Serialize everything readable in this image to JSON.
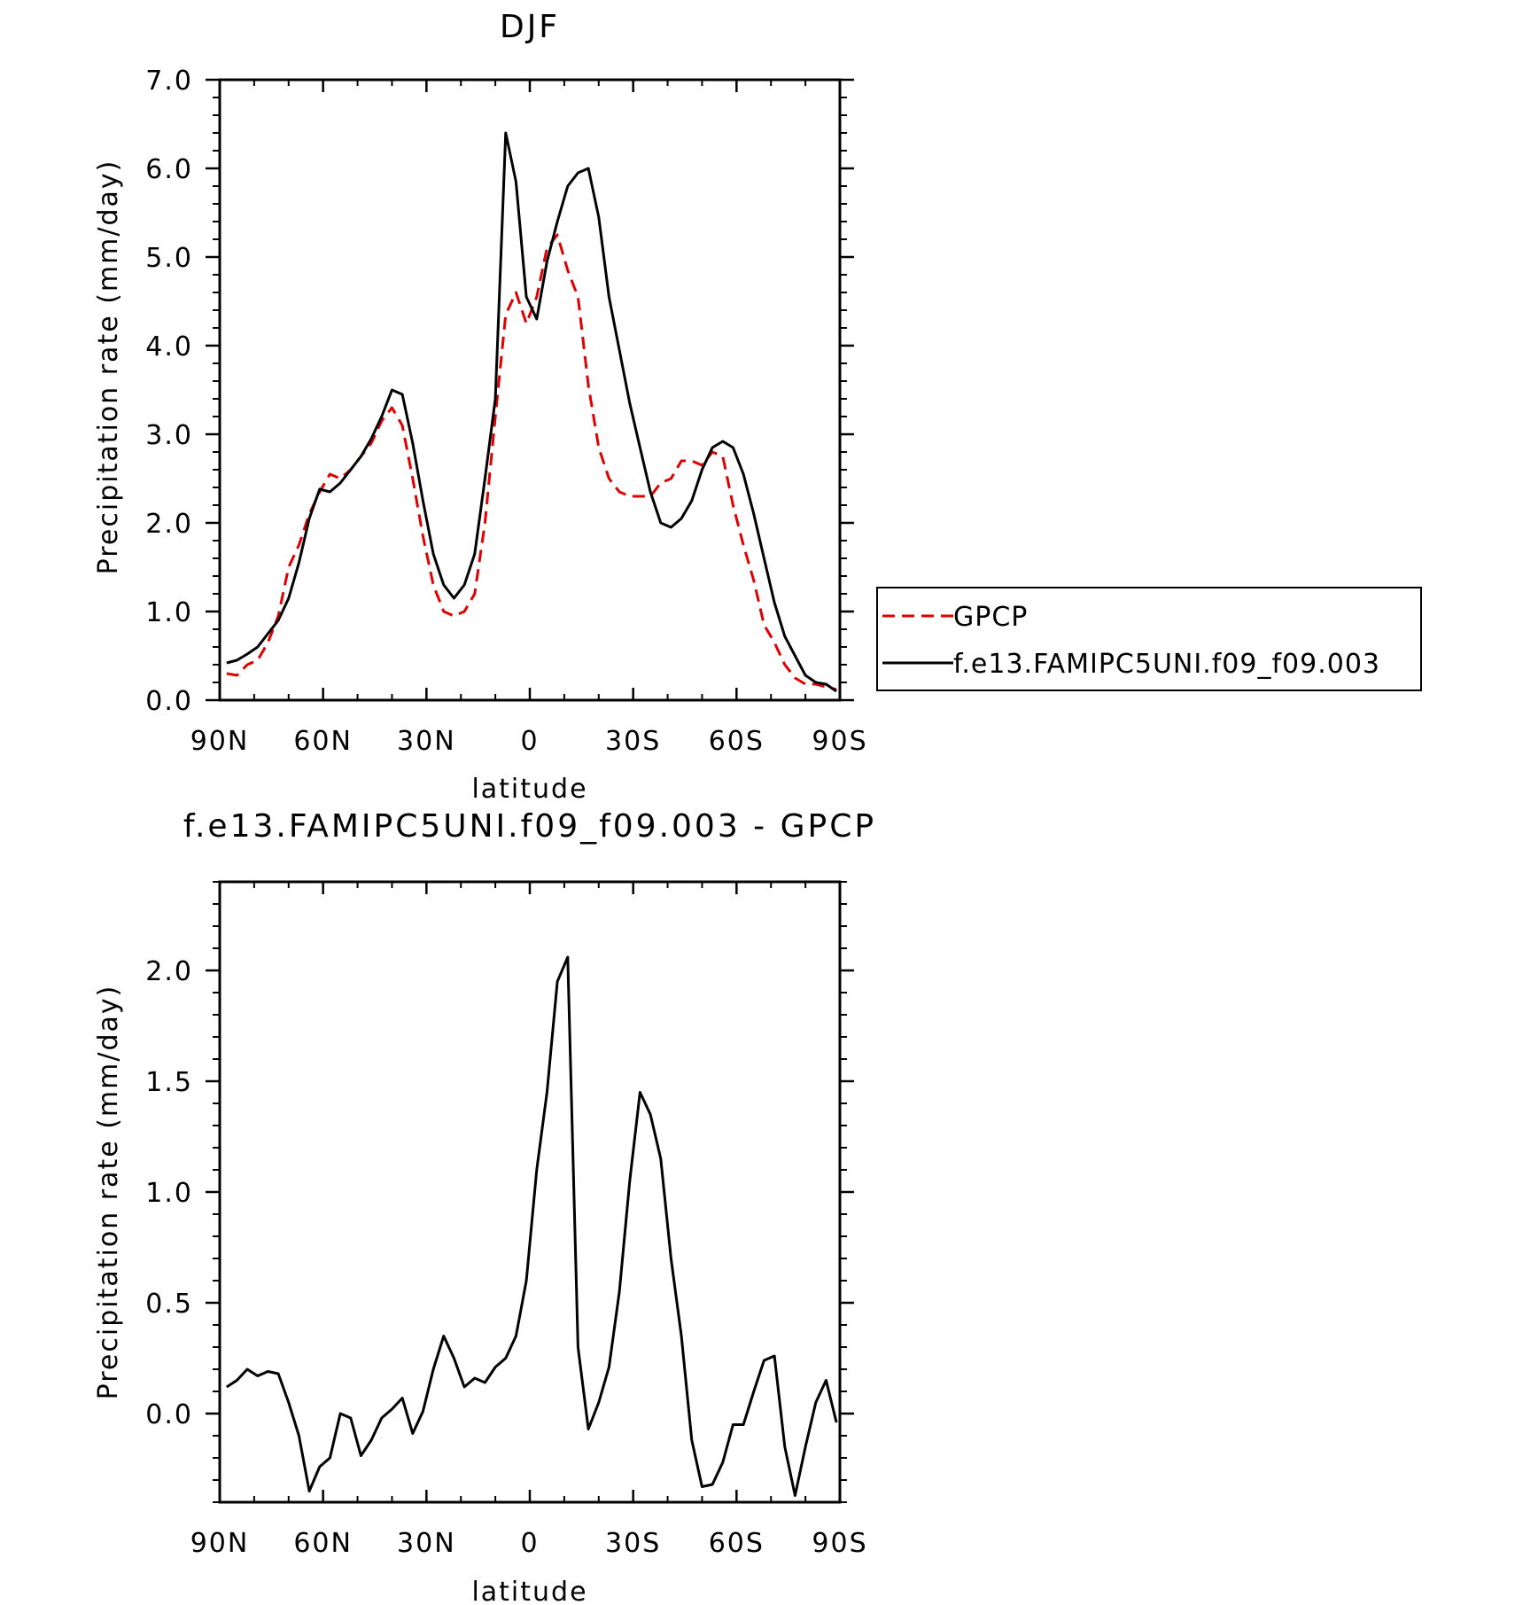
{
  "chart_data": [
    {
      "type": "line",
      "title": "DJF",
      "xlabel": "latitude",
      "ylabel": "Precipitation rate (mm/day)",
      "xlim": [
        90,
        -90
      ],
      "ylim": [
        0,
        7
      ],
      "xticks": [
        {
          "value": 90,
          "label": "90N"
        },
        {
          "value": 60,
          "label": "60N"
        },
        {
          "value": 30,
          "label": "30N"
        },
        {
          "value": 0,
          "label": "0"
        },
        {
          "value": -30,
          "label": "30S"
        },
        {
          "value": -60,
          "label": "60S"
        },
        {
          "value": -90,
          "label": "90S"
        }
      ],
      "yticks": [
        {
          "value": 0,
          "label": "0.0"
        },
        {
          "value": 1,
          "label": "1.0"
        },
        {
          "value": 2,
          "label": "2.0"
        },
        {
          "value": 3,
          "label": "3.0"
        },
        {
          "value": 4,
          "label": "4.0"
        },
        {
          "value": 5,
          "label": "5.0"
        },
        {
          "value": 6,
          "label": "6.0"
        },
        {
          "value": 7,
          "label": "7.0"
        }
      ],
      "grid": false,
      "legend": "right",
      "series": [
        {
          "name": "GPCP",
          "color": "#e00000",
          "dash": true,
          "x": [
            88,
            85,
            82,
            79,
            76,
            73,
            70,
            67,
            64,
            61,
            58,
            55,
            52,
            49,
            46,
            43,
            40,
            37,
            34,
            31,
            28,
            25,
            22,
            19,
            16,
            13,
            10,
            7,
            4,
            1,
            -2,
            -5,
            -8,
            -11,
            -14,
            -17,
            -20,
            -23,
            -26,
            -29,
            -32,
            -35,
            -38,
            -41,
            -44,
            -47,
            -50,
            -53,
            -56,
            -59,
            -62,
            -65,
            -68,
            -71,
            -74,
            -77,
            -80,
            -83,
            -86,
            -89
          ],
          "values": [
            0.3,
            0.28,
            0.4,
            0.45,
            0.65,
            0.95,
            1.5,
            1.75,
            2.1,
            2.35,
            2.55,
            2.5,
            2.6,
            2.75,
            2.9,
            3.15,
            3.3,
            3.1,
            2.5,
            1.85,
            1.3,
            1.0,
            0.95,
            1.0,
            1.2,
            2.0,
            3.2,
            4.35,
            4.6,
            4.25,
            4.55,
            5.1,
            5.25,
            4.85,
            4.55,
            3.55,
            2.85,
            2.5,
            2.35,
            2.3,
            2.3,
            2.3,
            2.45,
            2.5,
            2.7,
            2.7,
            2.65,
            2.8,
            2.75,
            2.2,
            1.75,
            1.35,
            0.85,
            0.65,
            0.4,
            0.25,
            0.18,
            0.18,
            0.15,
            0.12
          ]
        },
        {
          "name": "f.e13.FAMIPC5UNI.f09_f09.003",
          "color": "#000000",
          "dash": false,
          "x": [
            88,
            85,
            82,
            79,
            76,
            73,
            70,
            67,
            64,
            61,
            58,
            55,
            52,
            49,
            46,
            43,
            40,
            37,
            34,
            31,
            28,
            25,
            22,
            19,
            16,
            13,
            10,
            7,
            4,
            1,
            -2,
            -5,
            -8,
            -11,
            -14,
            -17,
            -20,
            -23,
            -26,
            -29,
            -32,
            -35,
            -38,
            -41,
            -44,
            -47,
            -50,
            -53,
            -56,
            -59,
            -62,
            -65,
            -68,
            -71,
            -74,
            -77,
            -80,
            -83,
            -86,
            -89
          ],
          "values": [
            0.42,
            0.45,
            0.52,
            0.6,
            0.75,
            0.9,
            1.15,
            1.55,
            2.05,
            2.38,
            2.35,
            2.45,
            2.6,
            2.75,
            2.95,
            3.2,
            3.5,
            3.45,
            2.9,
            2.25,
            1.65,
            1.3,
            1.15,
            1.3,
            1.65,
            2.5,
            3.4,
            6.4,
            5.85,
            4.55,
            4.3,
            4.95,
            5.4,
            5.8,
            5.95,
            6.0,
            5.45,
            4.55,
            3.95,
            3.35,
            2.85,
            2.35,
            2.0,
            1.95,
            2.05,
            2.25,
            2.6,
            2.85,
            2.92,
            2.85,
            2.55,
            2.1,
            1.6,
            1.1,
            0.72,
            0.5,
            0.28,
            0.2,
            0.18,
            0.1
          ]
        }
      ]
    },
    {
      "type": "line",
      "title": "f.e13.FAMIPC5UNI.f09_f09.003 - GPCP",
      "xlabel": "latitude",
      "ylabel": "Precipitation rate (mm/day)",
      "xlim": [
        90,
        -90
      ],
      "ylim": [
        -0.4,
        2.4
      ],
      "xticks": [
        {
          "value": 90,
          "label": "90N"
        },
        {
          "value": 60,
          "label": "60N"
        },
        {
          "value": 30,
          "label": "30N"
        },
        {
          "value": 0,
          "label": "0"
        },
        {
          "value": -30,
          "label": "30S"
        },
        {
          "value": -60,
          "label": "60S"
        },
        {
          "value": -90,
          "label": "90S"
        }
      ],
      "yticks": [
        {
          "value": 0,
          "label": "0.0"
        },
        {
          "value": 0.5,
          "label": "0.5"
        },
        {
          "value": 1,
          "label": "1.0"
        },
        {
          "value": 1.5,
          "label": "1.5"
        },
        {
          "value": 2,
          "label": "2.0"
        }
      ],
      "grid": false,
      "series": [
        {
          "color": "#000000",
          "dash": false,
          "x": [
            88,
            85,
            82,
            79,
            76,
            73,
            70,
            67,
            64,
            61,
            58,
            55,
            52,
            49,
            46,
            43,
            40,
            37,
            34,
            31,
            28,
            25,
            22,
            19,
            16,
            13,
            10,
            7,
            4,
            1,
            -2,
            -5,
            -8,
            -11,
            -14,
            -17,
            -20,
            -23,
            -26,
            -29,
            -32,
            -35,
            -38,
            -41,
            -44,
            -47,
            -50,
            -53,
            -56,
            -59,
            -62,
            -65,
            -68,
            -71,
            -74,
            -77,
            -80,
            -83,
            -86,
            -89
          ],
          "values": [
            0.12,
            0.15,
            0.2,
            0.17,
            0.19,
            0.18,
            0.05,
            -0.1,
            -0.35,
            -0.24,
            -0.2,
            0.0,
            -0.02,
            -0.19,
            -0.12,
            -0.02,
            0.02,
            0.07,
            -0.09,
            0.01,
            0.2,
            0.35,
            0.25,
            0.12,
            0.16,
            0.14,
            0.21,
            0.25,
            0.35,
            0.6,
            1.1,
            1.45,
            1.95,
            2.06,
            0.3,
            -0.07,
            0.05,
            0.21,
            0.55,
            1.05,
            1.45,
            1.35,
            1.15,
            0.7,
            0.35,
            -0.12,
            -0.33,
            -0.32,
            -0.22,
            -0.05,
            -0.05,
            0.1,
            0.24,
            0.26,
            -0.15,
            -0.37,
            -0.15,
            0.05,
            0.15,
            -0.04
          ]
        }
      ]
    }
  ]
}
